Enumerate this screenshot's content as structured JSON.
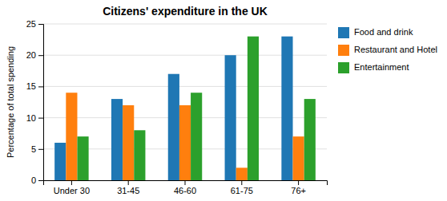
{
  "chart_data": {
    "type": "bar",
    "title": "Citizens' expenditure in the UK",
    "ylabel": "Percentage of total spending",
    "categories": [
      "Under 30",
      "31-45",
      "46-60",
      "61-75",
      "76+"
    ],
    "series": [
      {
        "name": "Food and drink",
        "values": [
          6,
          13,
          17,
          20,
          23
        ]
      },
      {
        "name": "Restaurant and Hotel",
        "values": [
          14,
          12,
          12,
          2,
          7
        ]
      },
      {
        "name": "Entertainment",
        "values": [
          7,
          8,
          14,
          23,
          13
        ]
      }
    ],
    "ylim": [
      0,
      25
    ],
    "yticks": [
      0,
      5,
      10,
      15,
      20,
      25
    ],
    "grid": true,
    "legend": "right"
  }
}
